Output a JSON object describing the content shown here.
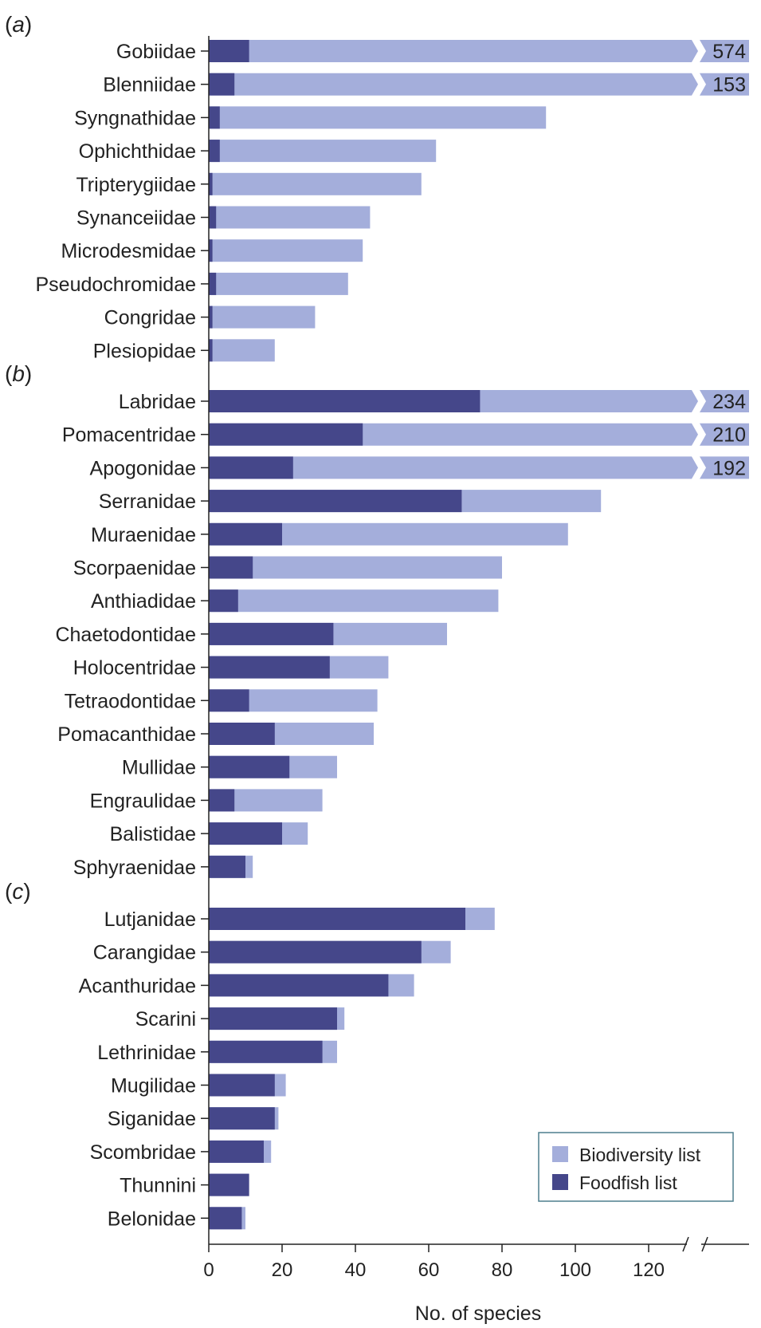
{
  "chart_data": {
    "type": "bar",
    "stacked": "overlaid",
    "xlabel": "No. of species",
    "xlim": [
      0,
      130
    ],
    "xticks": [
      0,
      20,
      40,
      60,
      80,
      100,
      120
    ],
    "axis_break": true,
    "series_names": [
      "Biodiversity list",
      "Foodfish list"
    ],
    "colors": {
      "Biodiversity list": "#a4aedb",
      "Foodfish list": "#45478a"
    },
    "legend_position": "bottom-right",
    "panels": [
      {
        "label": "a",
        "categories": [
          "Gobiidae",
          "Blenniidae",
          "Syngnathidae",
          "Ophichthidae",
          "Tripterygiidae",
          "Synanceiidae",
          "Microdesmidae",
          "Pseudochromidae",
          "Congridae",
          "Plesiopidae"
        ],
        "biodiversity": [
          574,
          153,
          92,
          62,
          58,
          44,
          42,
          38,
          29,
          18
        ],
        "foodfish": [
          11,
          7,
          3,
          3,
          1,
          2,
          1,
          2,
          1,
          1
        ],
        "break_labels": [
          "574",
          "153",
          "",
          "",
          "",
          "",
          "",
          "",
          "",
          ""
        ]
      },
      {
        "label": "b",
        "categories": [
          "Labridae",
          "Pomacentridae",
          "Apogonidae",
          "Serranidae",
          "Muraenidae",
          "Scorpaenidae",
          "Anthiadidae",
          "Chaetodontidae",
          "Holocentridae",
          "Tetraodontidae",
          "Pomacanthidae",
          "Mullidae",
          "Engraulidae",
          "Balistidae",
          "Sphyraenidae"
        ],
        "biodiversity": [
          234,
          210,
          192,
          107,
          98,
          80,
          79,
          65,
          49,
          46,
          45,
          35,
          31,
          27,
          12
        ],
        "foodfish": [
          74,
          42,
          23,
          69,
          20,
          12,
          8,
          34,
          33,
          11,
          18,
          22,
          7,
          20,
          10
        ],
        "break_labels": [
          "234",
          "210",
          "192",
          "",
          "",
          "",
          "",
          "",
          "",
          "",
          "",
          "",
          "",
          "",
          ""
        ]
      },
      {
        "label": "c",
        "categories": [
          "Lutjanidae",
          "Carangidae",
          "Acanthuridae",
          "Scarini",
          "Lethrinidae",
          "Mugilidae",
          "Siganidae",
          "Scombridae",
          "Thunnini",
          "Belonidae"
        ],
        "biodiversity": [
          78,
          66,
          56,
          37,
          35,
          21,
          19,
          17,
          11,
          10
        ],
        "foodfish": [
          70,
          58,
          49,
          35,
          31,
          18,
          18,
          15,
          11,
          9
        ],
        "break_labels": [
          "",
          "",
          "",
          "",
          "",
          "",
          "",
          "",
          "",
          ""
        ]
      }
    ]
  }
}
